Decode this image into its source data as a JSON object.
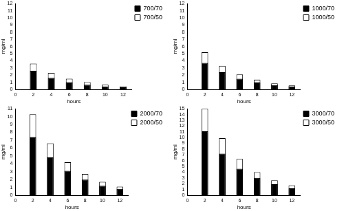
{
  "chart_data": [
    {
      "type": "bar",
      "x": [
        2,
        4,
        6,
        8,
        10,
        12
      ],
      "xlim": [
        0,
        13
      ],
      "xticks": [
        0,
        2,
        4,
        6,
        8,
        10,
        12
      ],
      "ylim": [
        0,
        12
      ],
      "yticks": [
        0,
        1,
        2,
        3,
        4,
        5,
        6,
        7,
        8,
        9,
        10,
        11,
        12
      ],
      "x_label": "hours",
      "y_label": "mg/ml",
      "grid": false,
      "legend": "upper-right",
      "series": [
        {
          "name": "700/70",
          "color": "#000000",
          "values": [
            2.6,
            1.6,
            1.0,
            0.65,
            0.4,
            0.3
          ]
        },
        {
          "name": "700/50",
          "color": "#ffffff",
          "values": [
            3.6,
            2.3,
            1.5,
            1.0,
            0.65,
            0.4
          ]
        }
      ]
    },
    {
      "type": "bar",
      "x": [
        2,
        4,
        6,
        8,
        10,
        12
      ],
      "xlim": [
        0,
        13
      ],
      "xticks": [
        0,
        2,
        4,
        6,
        8,
        10,
        12
      ],
      "ylim": [
        0,
        12
      ],
      "yticks": [
        0,
        1,
        2,
        3,
        4,
        5,
        6,
        7,
        8,
        9,
        10,
        11,
        12
      ],
      "x_label": "hours",
      "y_label": "mg/ml",
      "grid": false,
      "legend": "upper-right",
      "series": [
        {
          "name": "1000/70",
          "color": "#000000",
          "values": [
            3.7,
            2.4,
            1.5,
            0.95,
            0.6,
            0.4
          ]
        },
        {
          "name": "1000/50",
          "color": "#ffffff",
          "values": [
            5.2,
            3.3,
            2.1,
            1.35,
            0.85,
            0.55
          ]
        }
      ]
    },
    {
      "type": "bar",
      "x": [
        2,
        4,
        6,
        8,
        10,
        12
      ],
      "xlim": [
        0,
        13
      ],
      "xticks": [
        0,
        2,
        4,
        6,
        8,
        10,
        12
      ],
      "ylim": [
        0,
        11
      ],
      "yticks": [
        0,
        1,
        2,
        3,
        4,
        5,
        6,
        7,
        8,
        9,
        10,
        11
      ],
      "x_label": "hours",
      "y_label": "mg/ml",
      "grid": false,
      "legend": "upper-right",
      "series": [
        {
          "name": "2000/70",
          "color": "#000000",
          "values": [
            7.4,
            4.8,
            3.1,
            2.0,
            1.2,
            0.8
          ]
        },
        {
          "name": "2000/50",
          "color": "#ffffff",
          "values": [
            10.3,
            6.6,
            4.2,
            2.7,
            1.7,
            1.1
          ]
        }
      ]
    },
    {
      "type": "bar",
      "x": [
        2,
        4,
        6,
        8,
        10,
        12
      ],
      "xlim": [
        0,
        13
      ],
      "xticks": [
        0,
        2,
        4,
        6,
        8,
        10,
        12
      ],
      "ylim": [
        0,
        15
      ],
      "yticks": [
        0,
        1,
        2,
        3,
        4,
        5,
        6,
        7,
        8,
        9,
        10,
        11,
        12,
        13,
        14,
        15
      ],
      "x_label": "hours",
      "y_label": "mg/ml",
      "grid": false,
      "legend": "upper-right",
      "series": [
        {
          "name": "3000/70",
          "color": "#000000",
          "values": [
            11.1,
            7.2,
            4.6,
            3.0,
            1.9,
            1.2
          ]
        },
        {
          "name": "3000/50",
          "color": "#ffffff",
          "values": [
            15.0,
            9.9,
            6.3,
            4.0,
            2.6,
            1.7
          ]
        }
      ]
    }
  ]
}
